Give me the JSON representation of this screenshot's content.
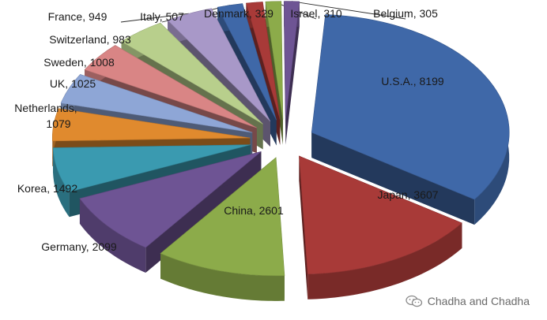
{
  "chart_data": {
    "type": "pie",
    "style": "3d-exploded",
    "title": "",
    "slices": [
      {
        "label": "U.S.A., 8199",
        "name": "U.S.A.",
        "value": 8199,
        "color": "#3f68a8"
      },
      {
        "label": "Japan, 3607",
        "name": "Japan",
        "value": 3607,
        "color": "#a83a38"
      },
      {
        "label": "China, 2601",
        "name": "China",
        "value": 2601,
        "color": "#8cab4a"
      },
      {
        "label": "Germany, 2099",
        "name": "Germany",
        "value": 2099,
        "color": "#6e5494"
      },
      {
        "label": "Korea, 1492",
        "name": "Korea",
        "value": 1492,
        "color": "#3a9ab0"
      },
      {
        "label": "Netherlands, 1079",
        "name": "Netherlands",
        "value": 1079,
        "color": "#e08a2e"
      },
      {
        "label": "UK, 1025",
        "name": "UK",
        "value": 1025,
        "color": "#8ea6d6"
      },
      {
        "label": "Sweden, 1008",
        "name": "Sweden",
        "value": 1008,
        "color": "#d98585"
      },
      {
        "label": "Switzerland, 983",
        "name": "Switzerland",
        "value": 983,
        "color": "#b8cf8c"
      },
      {
        "label": "France, 949",
        "name": "France",
        "value": 949,
        "color": "#a898c8"
      },
      {
        "label": "Italy, 507",
        "name": "Italy",
        "value": 507,
        "color": "#3f68a8"
      },
      {
        "label": "Denmark, 329",
        "name": "Denmark",
        "value": 329,
        "color": "#a83a38"
      },
      {
        "label": "Israel, 310",
        "name": "Israel",
        "value": 310,
        "color": "#8cab4a"
      },
      {
        "label": "Belgium, 305",
        "name": "Belgium",
        "value": 305,
        "color": "#6e5494"
      }
    ]
  },
  "watermark": {
    "text": "Chadha and Chadha",
    "icon": "wechat-icon"
  }
}
